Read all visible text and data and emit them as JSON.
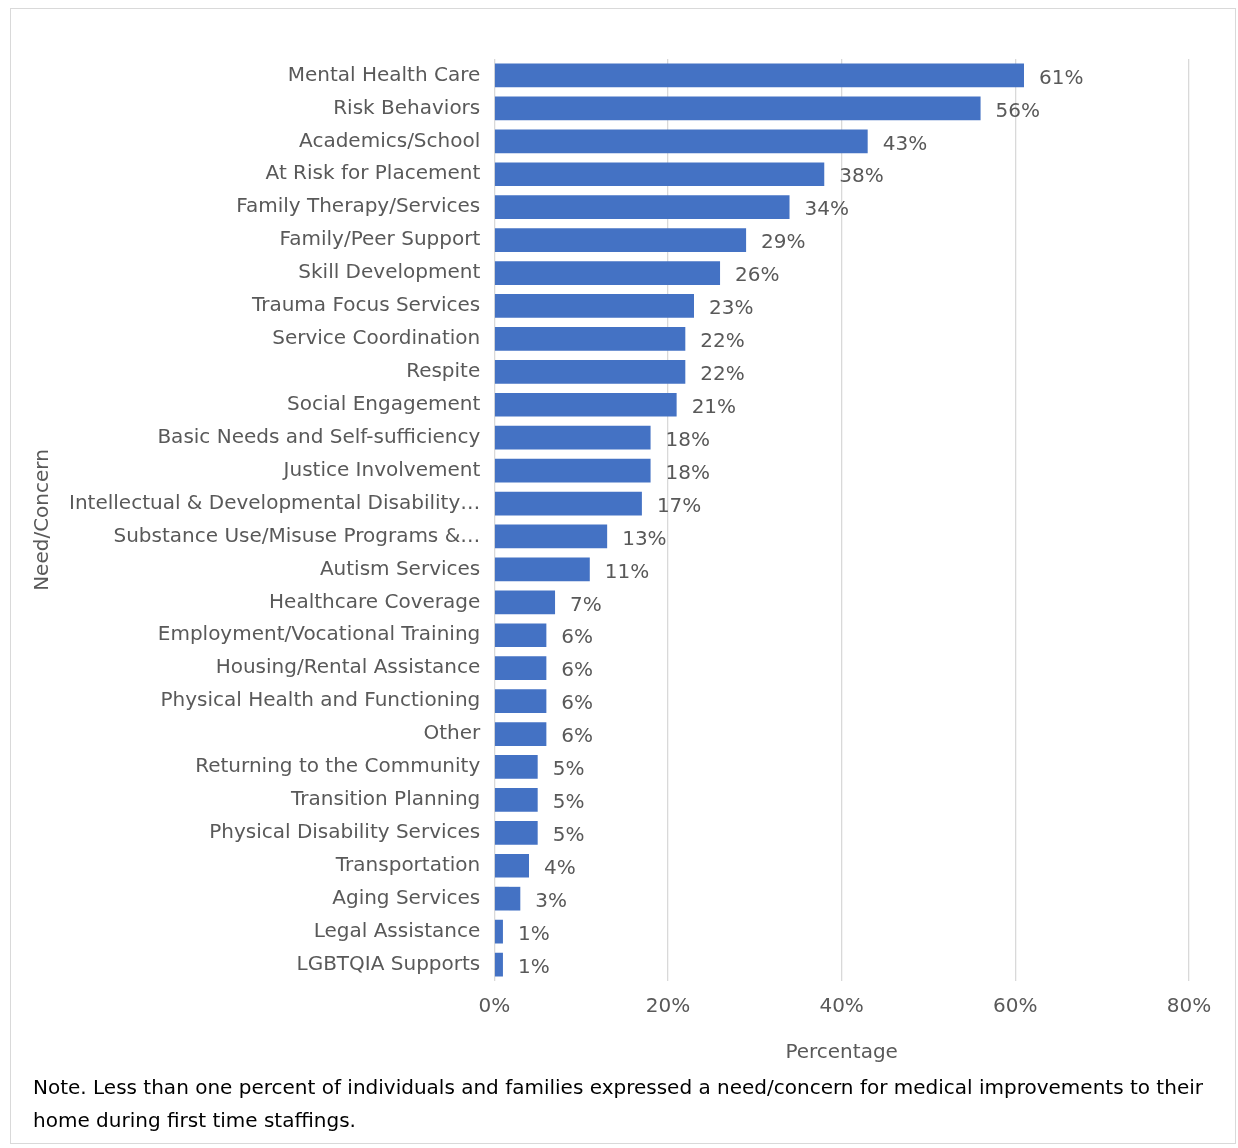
{
  "chart_data": {
    "type": "bar",
    "orientation": "horizontal",
    "xlabel": "Percentage",
    "ylabel": "Need/Concern",
    "categories": [
      "Mental Health Care",
      "Risk Behaviors",
      "Academics/School",
      "At Risk for Placement",
      "Family Therapy/Services",
      "Family/Peer Support",
      "Skill Development",
      "Trauma Focus Services",
      "Service Coordination",
      "Respite",
      "Social Engagement",
      "Basic Needs and Self-sufficiency",
      "Justice Involvement",
      "Intellectual & Developmental Disability…",
      "Substance Use/Misuse Programs &…",
      "Autism Services",
      "Healthcare Coverage",
      "Employment/Vocational Training",
      "Housing/Rental Assistance",
      "Physical Health and Functioning",
      "Other",
      "Returning to the Community",
      "Transition Planning",
      "Physical Disability Services",
      "Transportation",
      "Aging Services",
      "Legal Assistance",
      "LGBTQIA Supports"
    ],
    "values": [
      61,
      56,
      43,
      38,
      34,
      29,
      26,
      23,
      22,
      22,
      21,
      18,
      18,
      17,
      13,
      11,
      7,
      6,
      6,
      6,
      6,
      5,
      5,
      5,
      4,
      3,
      1,
      1
    ],
    "value_labels": [
      "61%",
      "56%",
      "43%",
      "38%",
      "34%",
      "29%",
      "26%",
      "23%",
      "22%",
      "22%",
      "21%",
      "18%",
      "18%",
      "17%",
      "13%",
      "11%",
      "7%",
      "6%",
      "6%",
      "6%",
      "6%",
      "5%",
      "5%",
      "5%",
      "4%",
      "3%",
      "1%",
      "1%"
    ],
    "color": "#4472c4",
    "xlim": [
      0,
      80
    ],
    "xticks": [
      {
        "value": 0,
        "label": "0%"
      },
      {
        "value": 20,
        "label": "20%"
      },
      {
        "value": 40,
        "label": "40%"
      },
      {
        "value": 60,
        "label": "60%"
      },
      {
        "value": 80,
        "label": "80%"
      }
    ],
    "grid": "x",
    "legend": false,
    "annotations": [
      "Note. Less than one percent of individuals and families expressed a need/concern for medical improvements to their home during first time staffings."
    ]
  }
}
